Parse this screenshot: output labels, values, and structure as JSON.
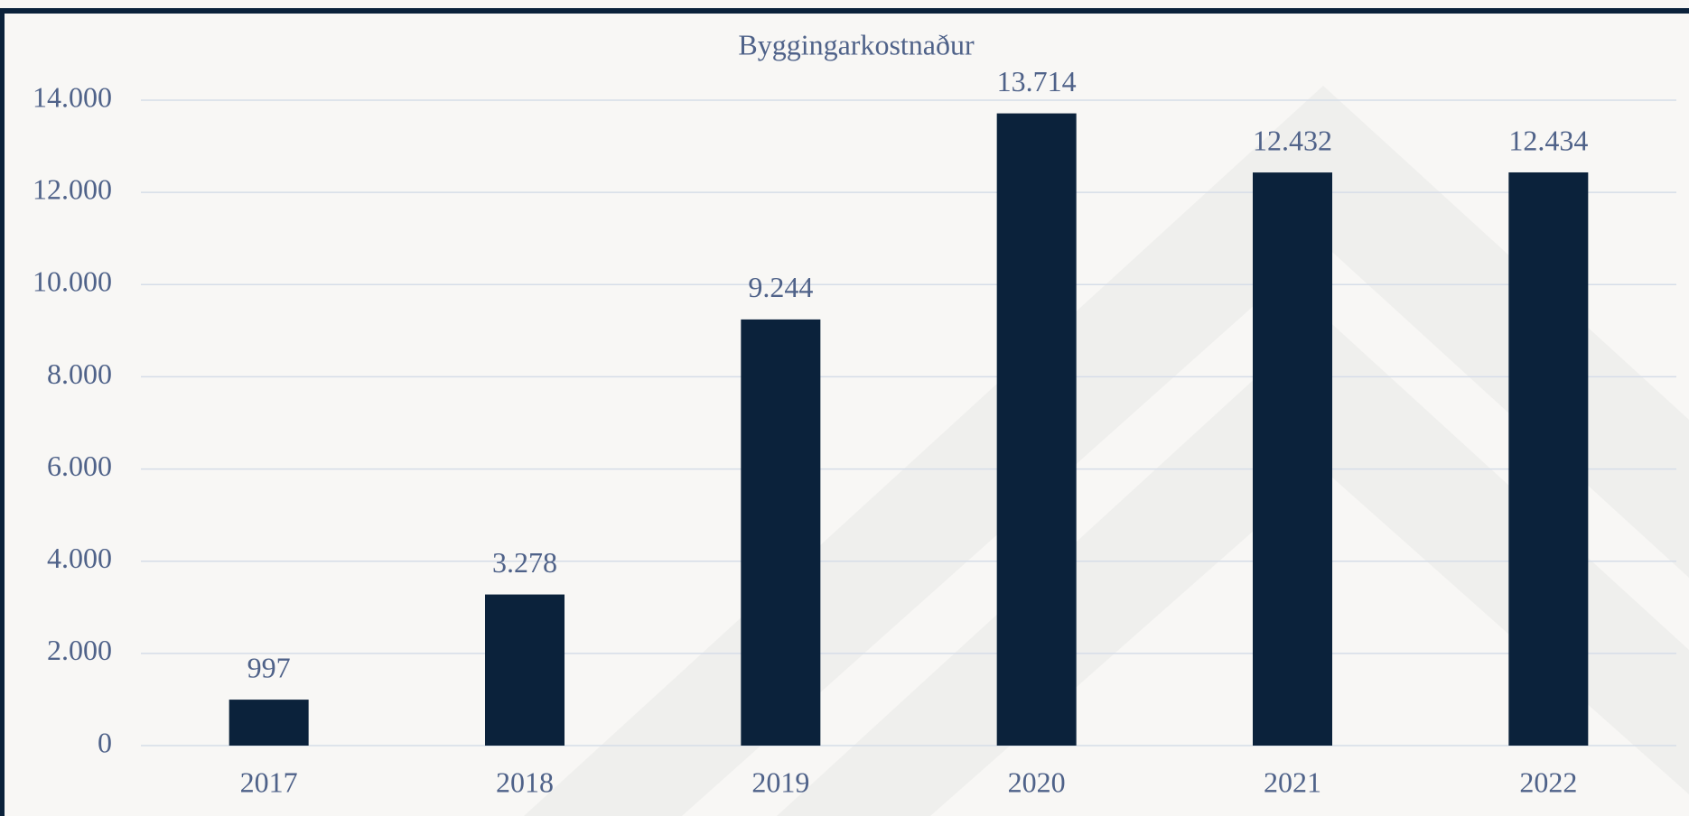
{
  "chart_data": {
    "type": "bar",
    "title": "Byggingarkostnaður",
    "categories": [
      "2017",
      "2018",
      "2019",
      "2020",
      "2021",
      "2022"
    ],
    "values": [
      997,
      3278,
      9244,
      13714,
      12432,
      12434
    ],
    "value_labels": [
      "997",
      "3.278",
      "9.244",
      "13.714",
      "12.432",
      "12.434"
    ],
    "color": "#0b223b",
    "ylim": [
      0,
      14000
    ],
    "yticks": [
      0,
      {
        "value": 2000,
        "label": "2.000"
      },
      {
        "value": 4000,
        "label": "4.000"
      },
      {
        "value": 6000,
        "label": "6.000"
      },
      {
        "value": 8000,
        "label": "8.000"
      },
      {
        "value": 10000,
        "label": "10.000"
      },
      {
        "value": 12000,
        "label": "12.000"
      },
      {
        "value": 14000,
        "label": "14.000"
      }
    ],
    "grid": true
  }
}
